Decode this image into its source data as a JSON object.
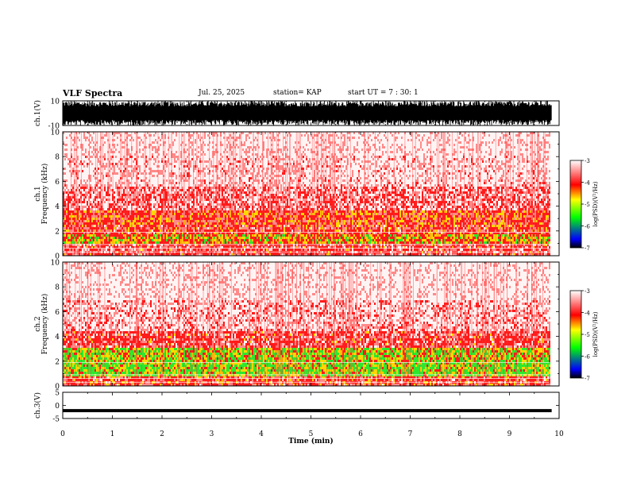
{
  "header": {
    "title": "VLF Spectra",
    "date": "Jul. 25, 2025",
    "station": "station= KAP",
    "start": "start  UT  =   7 : 30: 1"
  },
  "chart_data": [
    {
      "type": "line",
      "title": "",
      "xlabel": "",
      "ylabel": "ch.1(V)",
      "xlim": [
        0,
        10
      ],
      "ylim": [
        -10,
        10
      ],
      "yticks": [
        "10",
        "-10"
      ],
      "description_values": "dense waveform filling most of the range",
      "envelope_max": 10,
      "envelope_min": -10
    },
    {
      "type": "heatmap",
      "ylabel": "ch.1\nFrequency (kHz)",
      "xlim": [
        0,
        10
      ],
      "ylim": [
        0,
        10
      ],
      "yticks": [
        "0",
        "2",
        "4",
        "6",
        "8",
        "10"
      ],
      "data_end_min": 9.8,
      "band_intensity_by_freq_kHz": [
        {
          "f": 0.5,
          "level": -3.8
        },
        {
          "f": 1.5,
          "level": -4.3
        },
        {
          "f": 2.3,
          "level": -3.9
        },
        {
          "f": 3.0,
          "level": -4.0
        },
        {
          "f": 4.5,
          "level": -3.6
        },
        {
          "f": 7.0,
          "level": -3.3
        },
        {
          "f": 9.5,
          "level": -3.2
        }
      ]
    },
    {
      "type": "heatmap",
      "ylabel": "ch.2\nFrequency (kHz)",
      "xlim": [
        0,
        10
      ],
      "ylim": [
        0,
        10
      ],
      "yticks": [
        "0",
        "2",
        "4",
        "6",
        "8",
        "10"
      ],
      "data_end_min": 9.8,
      "band_intensity_by_freq_kHz": [
        {
          "f": 0.5,
          "level": -3.9
        },
        {
          "f": 1.2,
          "level": -4.6
        },
        {
          "f": 2.7,
          "level": -4.5
        },
        {
          "f": 3.5,
          "level": -3.8
        },
        {
          "f": 5.5,
          "level": -3.4
        },
        {
          "f": 8.5,
          "level": -3.2
        }
      ]
    },
    {
      "type": "line",
      "ylabel": "ch.3(V)",
      "xlim": [
        0,
        10
      ],
      "ylim": [
        -5,
        5
      ],
      "yticks": [
        "5",
        "0",
        "-5"
      ],
      "signal_center": -2,
      "signal_halfwidth": 0.6
    }
  ],
  "x_axis": {
    "label": "Time (min)",
    "ticks": [
      "0",
      "1",
      "2",
      "3",
      "4",
      "5",
      "6",
      "7",
      "8",
      "9",
      "10"
    ]
  },
  "colorbars": [
    {
      "label": "log(PSD)(V²/Hz)",
      "ticks": [
        "-3",
        "-4",
        "-5",
        "-6",
        "-7"
      ],
      "range": [
        -7,
        -3
      ]
    },
    {
      "label": "log(PSD)(V²/Hz)",
      "ticks": [
        "-3",
        "-4",
        "-5",
        "-6",
        "-7"
      ],
      "range": [
        -7,
        -3
      ]
    }
  ],
  "colors": {
    "high": "#ffffff",
    "red": "#ff0000",
    "yellow": "#ffff00",
    "green": "#00ff00",
    "blue": "#0000ff",
    "low": "#000000"
  }
}
